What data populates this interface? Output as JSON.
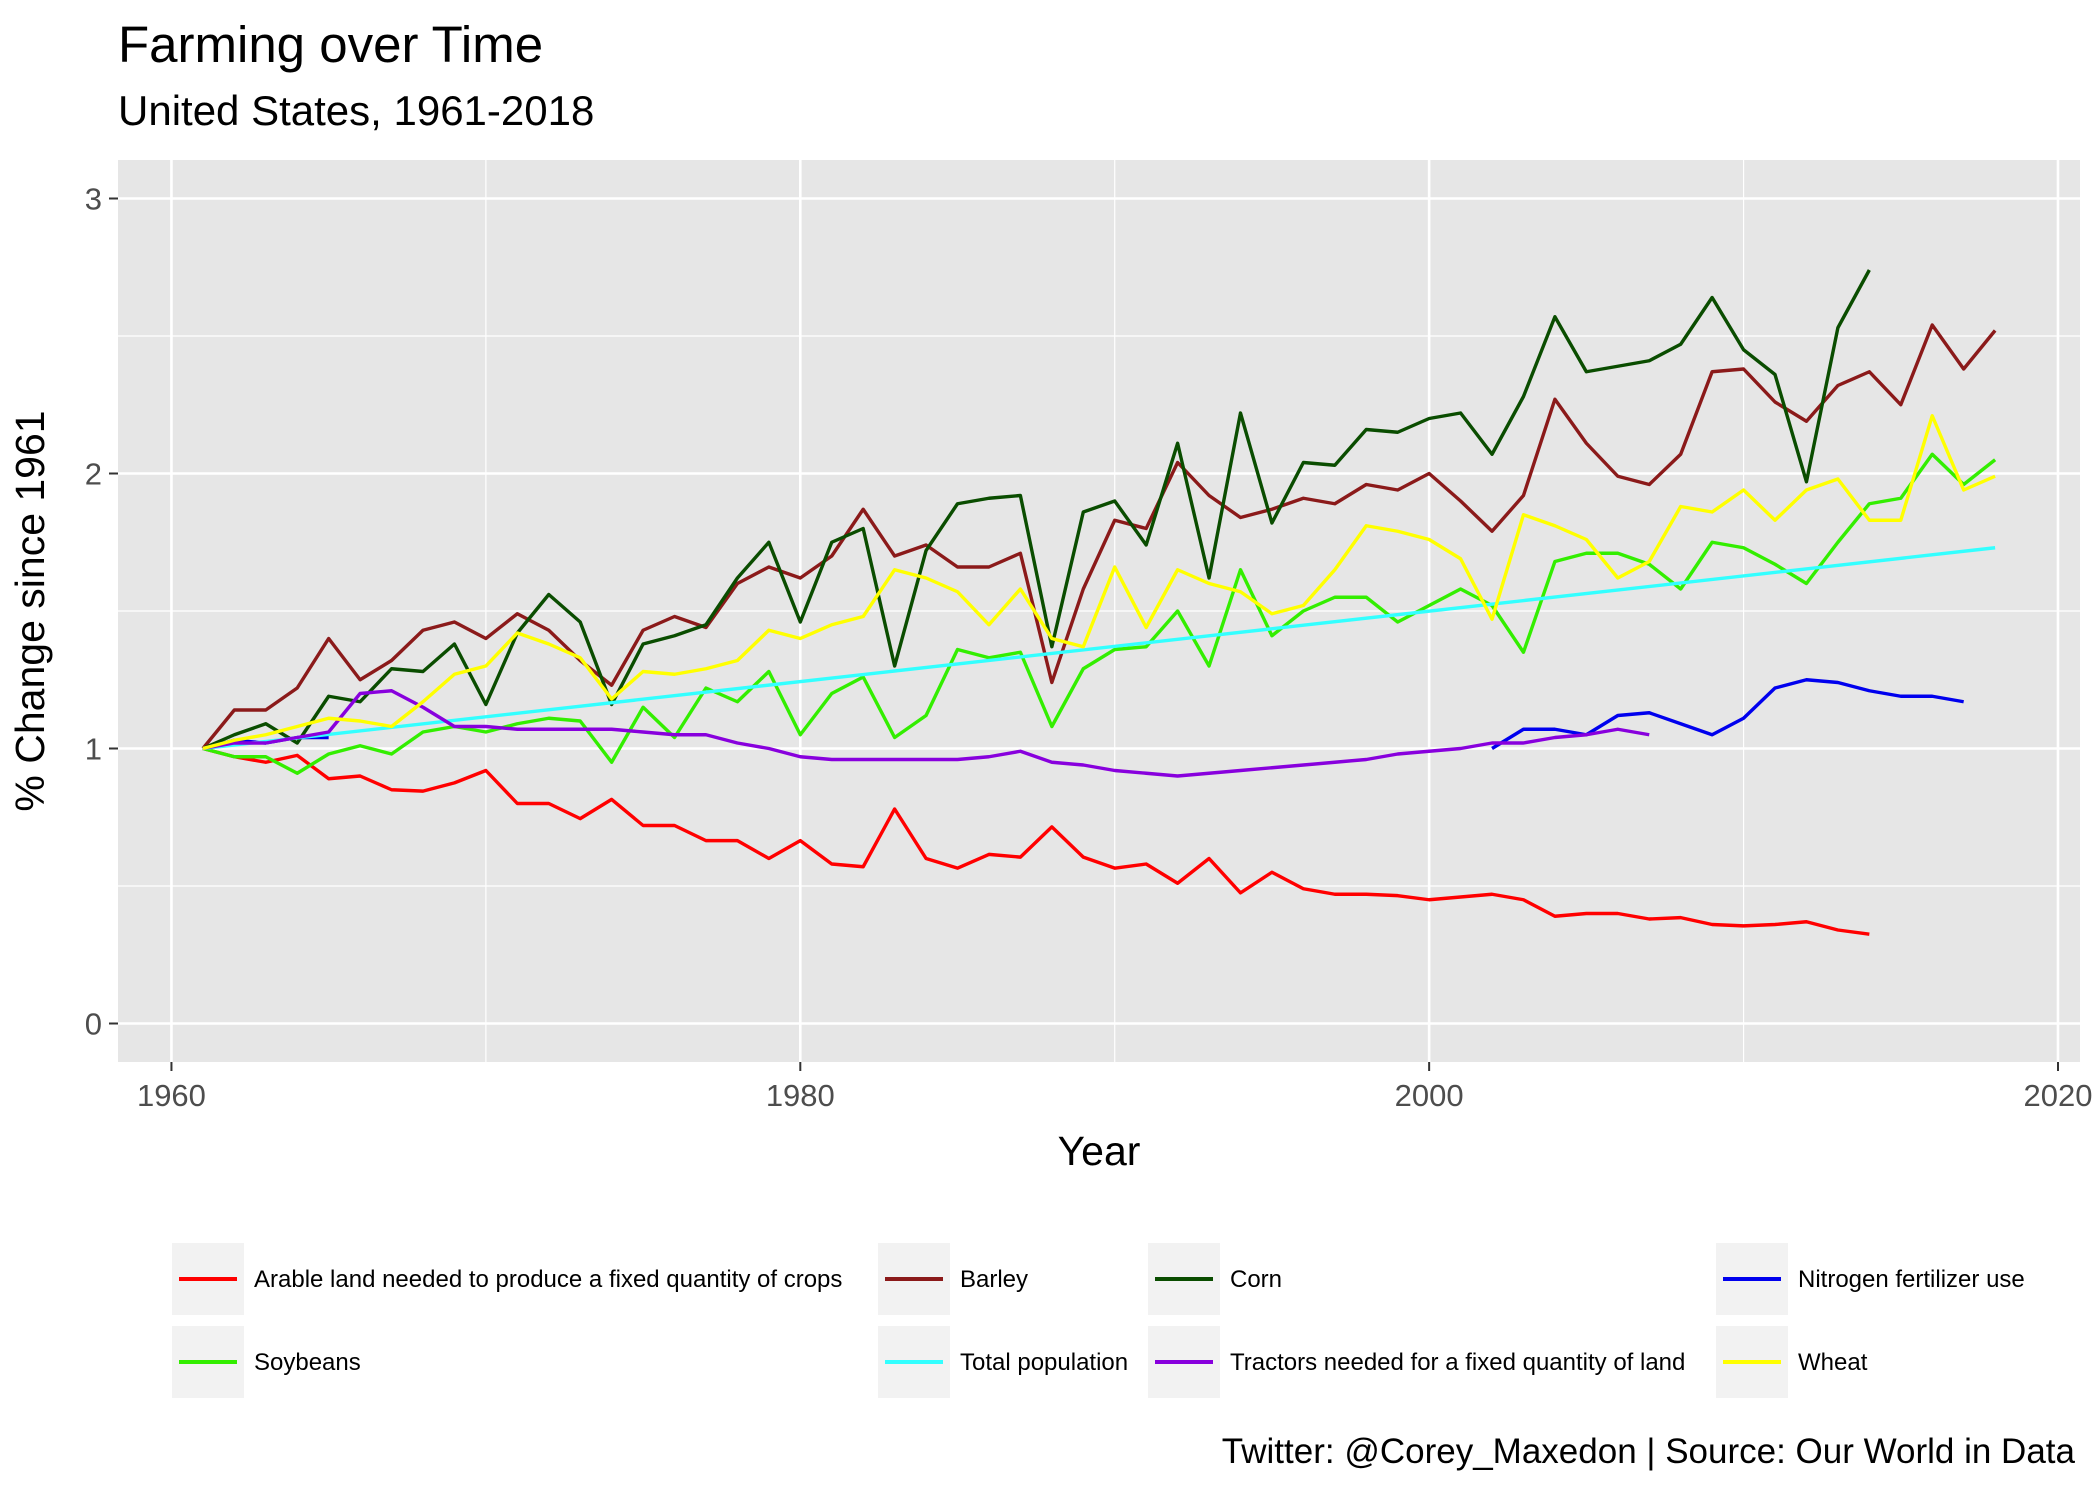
{
  "chart_data": {
    "type": "line",
    "title": "Farming over Time",
    "subtitle": "United States, 1961-2018",
    "xlabel": "Year",
    "ylabel": "% Change since 1961",
    "caption": "Twitter: @Corey_Maxedon | Source: Our World in Data",
    "xlim": [
      1958.3,
      2020.7
    ],
    "ylim": [
      -0.14,
      3.14
    ],
    "x_ticks": [
      1960,
      1980,
      2000,
      2020
    ],
    "y_ticks": [
      0,
      1,
      2,
      3
    ],
    "grid": true,
    "legend_position": "bottom",
    "background": "#e6e6e6",
    "series": [
      {
        "name": "Arable land needed to produce a fixed quantity of crops",
        "color": "#ff0000",
        "x_start": 1961,
        "values": [
          1.0,
          0.97,
          0.95,
          0.975,
          0.89,
          0.9,
          0.85,
          0.845,
          0.875,
          0.92,
          0.8,
          0.8,
          0.745,
          0.815,
          0.72,
          0.72,
          0.665,
          0.665,
          0.6,
          0.665,
          0.58,
          0.57,
          0.78,
          0.6,
          0.565,
          0.615,
          0.605,
          0.715,
          0.605,
          0.565,
          0.58,
          0.51,
          0.6,
          0.475,
          0.55,
          0.49,
          0.47,
          0.47,
          0.465,
          0.45,
          0.46,
          0.47,
          0.45,
          0.39,
          0.4,
          0.4,
          0.38,
          0.385,
          0.36,
          0.355,
          0.36,
          0.37,
          0.34,
          0.325
        ]
      },
      {
        "name": "Barley",
        "color": "#8b1a1a",
        "x_start": 1961,
        "values": [
          1.0,
          1.14,
          1.14,
          1.22,
          1.4,
          1.25,
          1.32,
          1.43,
          1.46,
          1.4,
          1.49,
          1.43,
          1.32,
          1.23,
          1.43,
          1.48,
          1.44,
          1.6,
          1.66,
          1.62,
          1.7,
          1.87,
          1.7,
          1.74,
          1.66,
          1.66,
          1.71,
          1.24,
          1.58,
          1.83,
          1.8,
          2.04,
          1.92,
          1.84,
          1.87,
          1.91,
          1.89,
          1.96,
          1.94,
          2.0,
          1.9,
          1.79,
          1.92,
          2.27,
          2.11,
          1.99,
          1.96,
          2.07,
          2.37,
          2.38,
          2.26,
          2.19,
          2.32,
          2.37,
          2.25,
          2.54,
          2.38,
          2.52
        ]
      },
      {
        "name": "Corn",
        "color": "#0a4d00",
        "x_start": 1961,
        "values": [
          1.0,
          1.05,
          1.09,
          1.02,
          1.19,
          1.17,
          1.29,
          1.28,
          1.38,
          1.16,
          1.42,
          1.56,
          1.46,
          1.16,
          1.38,
          1.41,
          1.45,
          1.62,
          1.75,
          1.46,
          1.75,
          1.8,
          1.3,
          1.72,
          1.89,
          1.91,
          1.92,
          1.37,
          1.86,
          1.9,
          1.74,
          2.11,
          1.62,
          2.22,
          1.82,
          2.04,
          2.03,
          2.16,
          2.15,
          2.2,
          2.22,
          2.07,
          2.28,
          2.57,
          2.37,
          2.39,
          2.41,
          2.47,
          2.64,
          2.45,
          2.36,
          1.97,
          2.53,
          2.74
        ]
      },
      {
        "name": "Nitrogen fertilizer use",
        "color": "#0000ee",
        "segments": [
          {
            "x_start": 1961,
            "values": [
              1.0,
              1.03,
              1.02,
              1.04,
              1.04
            ]
          },
          {
            "x_start": 2002,
            "values": [
              1.0,
              1.07,
              1.07,
              1.05,
              1.12,
              1.13,
              1.09,
              1.05,
              1.11,
              1.22,
              1.25,
              1.24,
              1.21,
              1.19,
              1.19,
              1.17
            ]
          }
        ]
      },
      {
        "name": "Soybeans",
        "color": "#33ee00",
        "x_start": 1961,
        "values": [
          1.0,
          0.97,
          0.97,
          0.91,
          0.98,
          1.01,
          0.98,
          1.06,
          1.08,
          1.06,
          1.09,
          1.11,
          1.1,
          0.95,
          1.15,
          1.04,
          1.22,
          1.17,
          1.28,
          1.05,
          1.2,
          1.26,
          1.04,
          1.12,
          1.36,
          1.33,
          1.35,
          1.08,
          1.29,
          1.36,
          1.37,
          1.5,
          1.3,
          1.65,
          1.41,
          1.5,
          1.55,
          1.55,
          1.46,
          1.52,
          1.58,
          1.52,
          1.35,
          1.68,
          1.71,
          1.71,
          1.67,
          1.58,
          1.75,
          1.73,
          1.67,
          1.6,
          1.75,
          1.89,
          1.91,
          2.07,
          1.96,
          2.05
        ]
      },
      {
        "name": "Total population",
        "color": "#33ffff",
        "x_start": 1961,
        "x_end": 2018,
        "y_start": 1.0,
        "y_end": 1.73
      },
      {
        "name": "Tractors needed for a fixed quantity of land",
        "color": "#8800dd",
        "x_start": 1961,
        "values": [
          1.0,
          1.02,
          1.02,
          1.04,
          1.06,
          1.2,
          1.21,
          1.15,
          1.08,
          1.08,
          1.07,
          1.07,
          1.07,
          1.07,
          1.06,
          1.05,
          1.05,
          1.02,
          1.0,
          0.97,
          0.96,
          0.96,
          0.96,
          0.96,
          0.96,
          0.97,
          0.99,
          0.95,
          0.94,
          0.92,
          0.91,
          0.9,
          0.91,
          0.92,
          0.93,
          0.94,
          0.95,
          0.96,
          0.98,
          0.99,
          1.0,
          1.02,
          1.02,
          1.04,
          1.05,
          1.07,
          1.05
        ]
      },
      {
        "name": "Wheat",
        "color": "#ffff00",
        "x_start": 1961,
        "values": [
          1.0,
          1.03,
          1.05,
          1.08,
          1.11,
          1.1,
          1.08,
          1.17,
          1.27,
          1.3,
          1.42,
          1.38,
          1.33,
          1.18,
          1.28,
          1.27,
          1.29,
          1.32,
          1.43,
          1.4,
          1.45,
          1.48,
          1.65,
          1.62,
          1.57,
          1.45,
          1.58,
          1.4,
          1.37,
          1.66,
          1.44,
          1.65,
          1.6,
          1.57,
          1.49,
          1.52,
          1.65,
          1.81,
          1.79,
          1.76,
          1.69,
          1.47,
          1.85,
          1.81,
          1.76,
          1.62,
          1.68,
          1.88,
          1.86,
          1.94,
          1.83,
          1.94,
          1.98,
          1.83,
          1.83,
          2.21,
          1.94,
          1.99
        ]
      }
    ]
  }
}
